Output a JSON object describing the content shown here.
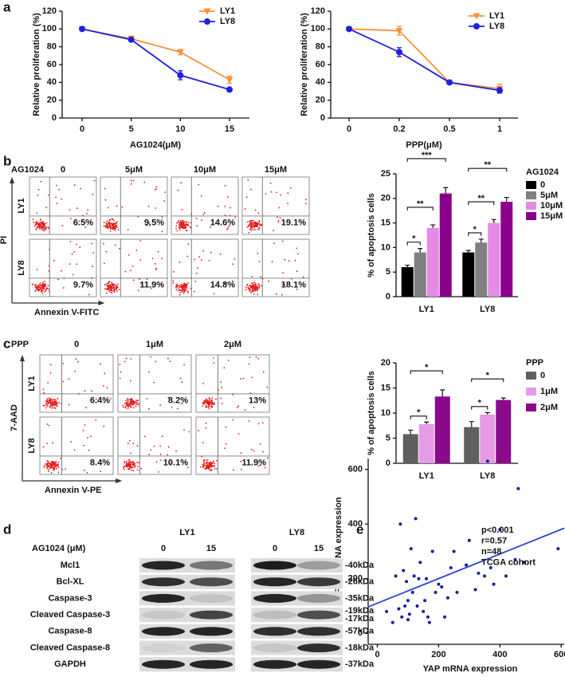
{
  "panels": [
    "a",
    "b",
    "c",
    "d",
    "e"
  ],
  "chart_data": [
    {
      "type": "line",
      "x_label": "AG1024(μM)",
      "y_label": "Relative proliferation (%)",
      "categories": [
        "0",
        "5",
        "10",
        "15"
      ],
      "series": [
        {
          "name": "LY1",
          "color": "#f5923e",
          "marker": "triangle-down",
          "values": [
            100,
            89,
            74,
            43
          ],
          "errors": [
            1,
            3,
            3,
            4
          ]
        },
        {
          "name": "LY8",
          "color": "#1f1fe0",
          "marker": "circle",
          "values": [
            100,
            88,
            48,
            32
          ],
          "errors": [
            1,
            2,
            5,
            1
          ]
        }
      ],
      "ylim": [
        0,
        120
      ],
      "yticks": [
        0,
        20,
        40,
        60,
        80,
        100,
        120
      ]
    },
    {
      "type": "line",
      "x_label": "PPP(μM)",
      "y_label": "Relative proliferation (%)",
      "categories": [
        "0",
        "0.2",
        "0.5",
        "1"
      ],
      "series": [
        {
          "name": "LY1",
          "color": "#f5923e",
          "marker": "triangle-down",
          "values": [
            100,
            98,
            40,
            33
          ],
          "errors": [
            1,
            5,
            1,
            5
          ]
        },
        {
          "name": "LY8",
          "color": "#1f1fe0",
          "marker": "circle",
          "values": [
            100,
            74,
            40,
            31
          ],
          "errors": [
            1,
            5,
            1,
            3
          ]
        }
      ],
      "ylim": [
        0,
        120
      ],
      "yticks": [
        0,
        20,
        40,
        60,
        80,
        100,
        120
      ]
    },
    {
      "type": "bar",
      "y_label": "% of apoptosis cells",
      "legend_title": "AG1024",
      "categories": [
        "LY1",
        "LY8"
      ],
      "series": [
        {
          "name": "0",
          "color": "#000000",
          "values": [
            6,
            9
          ],
          "errors": [
            0.4,
            0.4
          ]
        },
        {
          "name": "5μM",
          "color": "#808080",
          "values": [
            9,
            11
          ],
          "errors": [
            0.8,
            0.7
          ]
        },
        {
          "name": "10μM",
          "color": "#e58be5",
          "values": [
            14,
            15
          ],
          "errors": [
            0.6,
            0.7
          ]
        },
        {
          "name": "15μM",
          "color": "#8b008b",
          "values": [
            21,
            19.3
          ],
          "errors": [
            1.2,
            0.9
          ]
        }
      ],
      "ylim": [
        0,
        25
      ],
      "yticks": [
        0,
        5,
        10,
        15,
        20,
        25
      ],
      "significance": [
        [
          "*",
          "**",
          "***"
        ],
        [
          "*",
          "**",
          "**"
        ]
      ]
    },
    {
      "type": "bar",
      "y_label": "% of apoptosis cells",
      "legend_title": "PPP",
      "categories": [
        "LY1",
        "LY8"
      ],
      "series": [
        {
          "name": "0",
          "color": "#5f5f5f",
          "values": [
            5.8,
            7.2
          ],
          "errors": [
            0.8,
            1.1
          ]
        },
        {
          "name": "1μM",
          "color": "#e59be5",
          "values": [
            7.8,
            9.7
          ],
          "errors": [
            0.4,
            0.4
          ]
        },
        {
          "name": "2μM",
          "color": "#8b0a8b",
          "values": [
            13.3,
            12.6
          ],
          "errors": [
            1.3,
            0.4
          ]
        }
      ],
      "ylim": [
        0,
        20
      ],
      "yticks": [
        0,
        5,
        10,
        15,
        20
      ],
      "significance": [
        [
          "*",
          "*"
        ],
        [
          "*",
          "*"
        ]
      ]
    },
    {
      "type": "scatter",
      "x_label": "YAP mRNA expression",
      "y_label": "IGF-1R mRNA expression",
      "x": [
        30,
        50,
        60,
        70,
        75,
        80,
        85,
        90,
        95,
        100,
        100,
        105,
        110,
        115,
        120,
        125,
        130,
        135,
        140,
        150,
        155,
        160,
        165,
        170,
        180,
        190,
        200,
        210,
        220,
        230,
        240,
        250,
        260,
        290,
        300,
        320,
        330,
        350,
        360,
        370,
        380,
        400,
        420,
        450,
        460,
        480,
        590,
        620
      ],
      "y": [
        80,
        40,
        210,
        90,
        400,
        60,
        230,
        100,
        190,
        120,
        50,
        70,
        310,
        150,
        210,
        420,
        100,
        200,
        260,
        80,
        120,
        200,
        60,
        40,
        300,
        150,
        180,
        170,
        60,
        130,
        240,
        300,
        150,
        250,
        340,
        160,
        220,
        210,
        630,
        240,
        180,
        380,
        210,
        270,
        530,
        260,
        310,
        420
      ],
      "color": "#1a1aa0",
      "line_color": "#2b45d6",
      "trend_line": {
        "x": [
          -30,
          610
        ],
        "y": [
          97,
          385
        ]
      },
      "xlim": [
        -30,
        610
      ],
      "ylim": [
        -40,
        640
      ],
      "xticks": [
        0,
        200,
        400,
        600
      ],
      "yticks": [
        0,
        200,
        400,
        600
      ],
      "annotations": [
        "p<0.001",
        "r=0.57",
        "n=48",
        "TCGA cohort"
      ]
    }
  ],
  "flow_b": {
    "treatment": "AG1024",
    "columns": [
      "0",
      "5μM",
      "10μM",
      "15μM"
    ],
    "rows": [
      "LY1",
      "LY8"
    ],
    "y_label": "PI",
    "x_label": "Annexin V-FITC",
    "percentages": [
      [
        "6.5%",
        "9.5%",
        "14.6%",
        "19.1%"
      ],
      [
        "9.7%",
        "11.9%",
        "14.8%",
        "18.1%"
      ]
    ]
  },
  "flow_c": {
    "treatment": "PPP",
    "columns": [
      "0",
      "1μM",
      "2μM"
    ],
    "rows": [
      "LY1",
      "LY8"
    ],
    "y_label": "7-AAD",
    "x_label": "Annexin V-PE",
    "percentages": [
      [
        "6.4%",
        "8.2%",
        "13%"
      ],
      [
        "8.4%",
        "10.1%",
        "11.9%"
      ]
    ]
  },
  "blot": {
    "cell_lines": [
      "LY1",
      "LY8"
    ],
    "dose_label": "AG1024 (μM)",
    "doses": [
      "0",
      "15",
      "0",
      "15"
    ],
    "rows": [
      {
        "protein": "Mcl1",
        "sizes": [
          "-40kDa"
        ]
      },
      {
        "protein": "Bcl-XL",
        "sizes": [
          "-26kDa"
        ]
      },
      {
        "protein": "Caspase-3",
        "sizes": [
          "-35kDa"
        ]
      },
      {
        "protein": "Cleaved Caspase-3",
        "sizes": [
          "-19kDa",
          "-17kDa"
        ]
      },
      {
        "protein": "Caspase-8",
        "sizes": [
          "-57kDa"
        ]
      },
      {
        "protein": "Cleaved Caspase-8",
        "sizes": [
          "-18kDa"
        ]
      },
      {
        "protein": "GAPDH",
        "sizes": [
          "-37kDa"
        ]
      }
    ]
  }
}
